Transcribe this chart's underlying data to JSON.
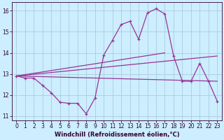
{
  "xlabel": "Windchill (Refroidissement éolien,°C)",
  "background_color": "#cceeff",
  "grid_color": "#aaccdd",
  "line_color": "#993399",
  "xlim": [
    -0.5,
    23.5
  ],
  "ylim": [
    10.8,
    16.4
  ],
  "yticks": [
    11,
    12,
    13,
    14,
    15,
    16
  ],
  "xticks": [
    0,
    1,
    2,
    3,
    4,
    5,
    6,
    7,
    8,
    9,
    10,
    11,
    12,
    13,
    14,
    15,
    16,
    17,
    18,
    19,
    20,
    21,
    22,
    23
  ],
  "line1_x": [
    0,
    1,
    2,
    3,
    4,
    5,
    6,
    7,
    8,
    9,
    10,
    11,
    12,
    13,
    14,
    15,
    16,
    17,
    18,
    19,
    20,
    21,
    22,
    23
  ],
  "line1_y": [
    12.9,
    12.8,
    12.8,
    12.45,
    12.1,
    11.65,
    11.6,
    11.6,
    11.1,
    11.85,
    13.9,
    14.6,
    15.35,
    15.5,
    14.65,
    15.9,
    16.1,
    15.85,
    13.85,
    12.65,
    12.65,
    13.5,
    12.65,
    11.7
  ],
  "line2_x": [
    0,
    23
  ],
  "line2_y": [
    12.9,
    12.65
  ],
  "line3_x": [
    0,
    23
  ],
  "line3_y": [
    12.9,
    13.85
  ],
  "line4_x": [
    0,
    17
  ],
  "line4_y": [
    12.9,
    14.0
  ],
  "tick_fontsize": 5.5,
  "xlabel_fontsize": 6.0
}
